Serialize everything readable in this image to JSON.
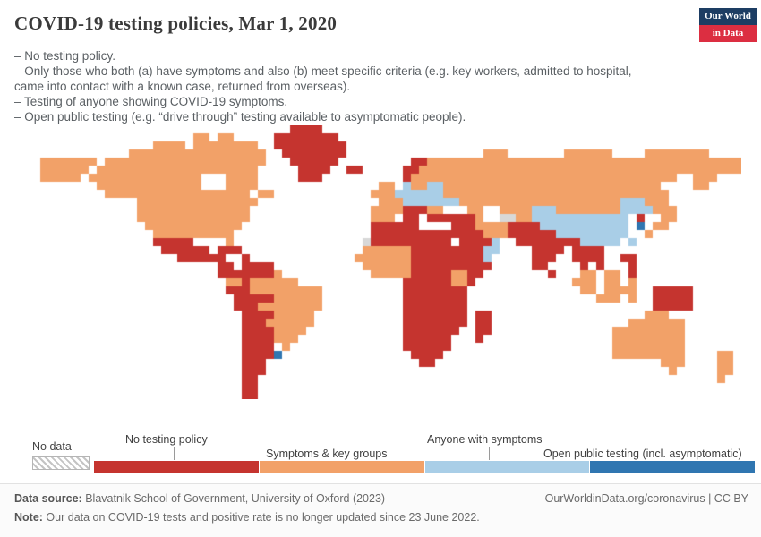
{
  "header": {
    "title": "COVID-19 testing policies, Mar 1, 2020",
    "logo": {
      "line1": "Our World",
      "line2": "in Data"
    }
  },
  "subtitle": {
    "lines": [
      "– No testing policy.",
      "– Only those who both (a) have symptoms and also (b) meet specific criteria (e.g. key workers, admitted to hospital, came into contact with a known case, returned from overseas).",
      "– Testing of anyone showing COVID-19 symptoms.",
      "– Open public testing (e.g. “drive through” testing available to asymptomatic people)."
    ]
  },
  "legend": {
    "no_data_label": "No data",
    "categories": [
      {
        "label": "No testing policy",
        "color": "#c5342f"
      },
      {
        "label": "Symptoms & key groups",
        "color": "#f2a168"
      },
      {
        "label": "Anyone with symptoms",
        "color": "#a9cee7"
      },
      {
        "label": "Open public testing (incl. asymptomatic)",
        "color": "#3076b1"
      }
    ]
  },
  "footer": {
    "data_source_label": "Data source:",
    "data_source_text": " Blavatnik School of Government, University of Oxford (2023)",
    "link_text": "OurWorldinData.org/coronavirus | CC BY",
    "note_label": "Note:",
    "note_text": " Our data on COVID-19 tests and positive rate is no longer updated since 23 June 2022."
  },
  "map": {
    "ocean_color": "#ffffff",
    "cell_size": 9,
    "palette": {
      "r": "#c5342f",
      "o": "#f2a168",
      "l": "#a9cee7",
      "b": "#3076b1",
      "h": "#d8d8d8"
    },
    "grid_rle": [
      "32.4r52.",
      "20.2o1.2o5.8r50.",
      "15.4o1.8o2.9r49.",
      "12.17o2.8r17.3o7.6o4.8o4.",
      "1.7o1.20o3.6r9.2r39o",
      "1.6o1.20o5.4r2.2r5.2r40o",
      "1.5o1.14o3.4o5.3r10.1r33o2.3o3.",
      "8.13o3.4o15.2o1.1l2o2l27o4.2o4.",
      "9.18o1.2o12.3o6l28o9.",
      "13.15o15.3o7l20o3l3o9.",
      "13.14o15.4o3r2o3.2o2.4o3l8o4l3o8.",
      "13.14o15.3o1.2r1.6r1o2.2h2o12l1.1r2.2o8.",
      "14.12o16.6r4.3r4o4r11l1.1b1.2o9.",
      "15.10o17.14r3o6r9l2.1o11.",
      "15.5r4.1o16.1h10r1.4r1l2.8r5l1.1l13.",
      "16.6r1.3r15.6o9r2l4.4r1.4r17.",
      "18.6r2.1r13.7o9r1l5.3r2.4r2.2r13.",
      "23.2r1.4r11.6o10r5.2r4.1r1.1r3.1r13.",
      "23.7r1o11.5o5r2o2r8.1r3.2o1.2o1.1r13.",
      "24.2o1r6o13.6r2o1r12.3o1.2o1.1o13.",
      "24.3r9o10.8r14.2o1.4o2.5r6.",
      "25.5r6o10.8r16.3o1.1o2.5r6.",
      "25.3r8o10.8r23.5r6.",
      "26.4r5o11.8r1.2r19.3o9.",
      "26.3r6o11.8r1.2r17.7o7.",
      "26.4r4o12.7r2.2r15.9o7.",
      "26.4r3o13.6r3.1r16.9o7.",
      "26.4r1.1o14.6r20.9o7.",
      "26.4r1b16.4r21.9o4.2o1.",
      "26.3r19.2r28.3o4.2o1.",
      "26.3r50.1o5.2o1.",
      "26.2r57.1o2.",
      "26.2r60.",
      "26.2r60."
    ]
  }
}
